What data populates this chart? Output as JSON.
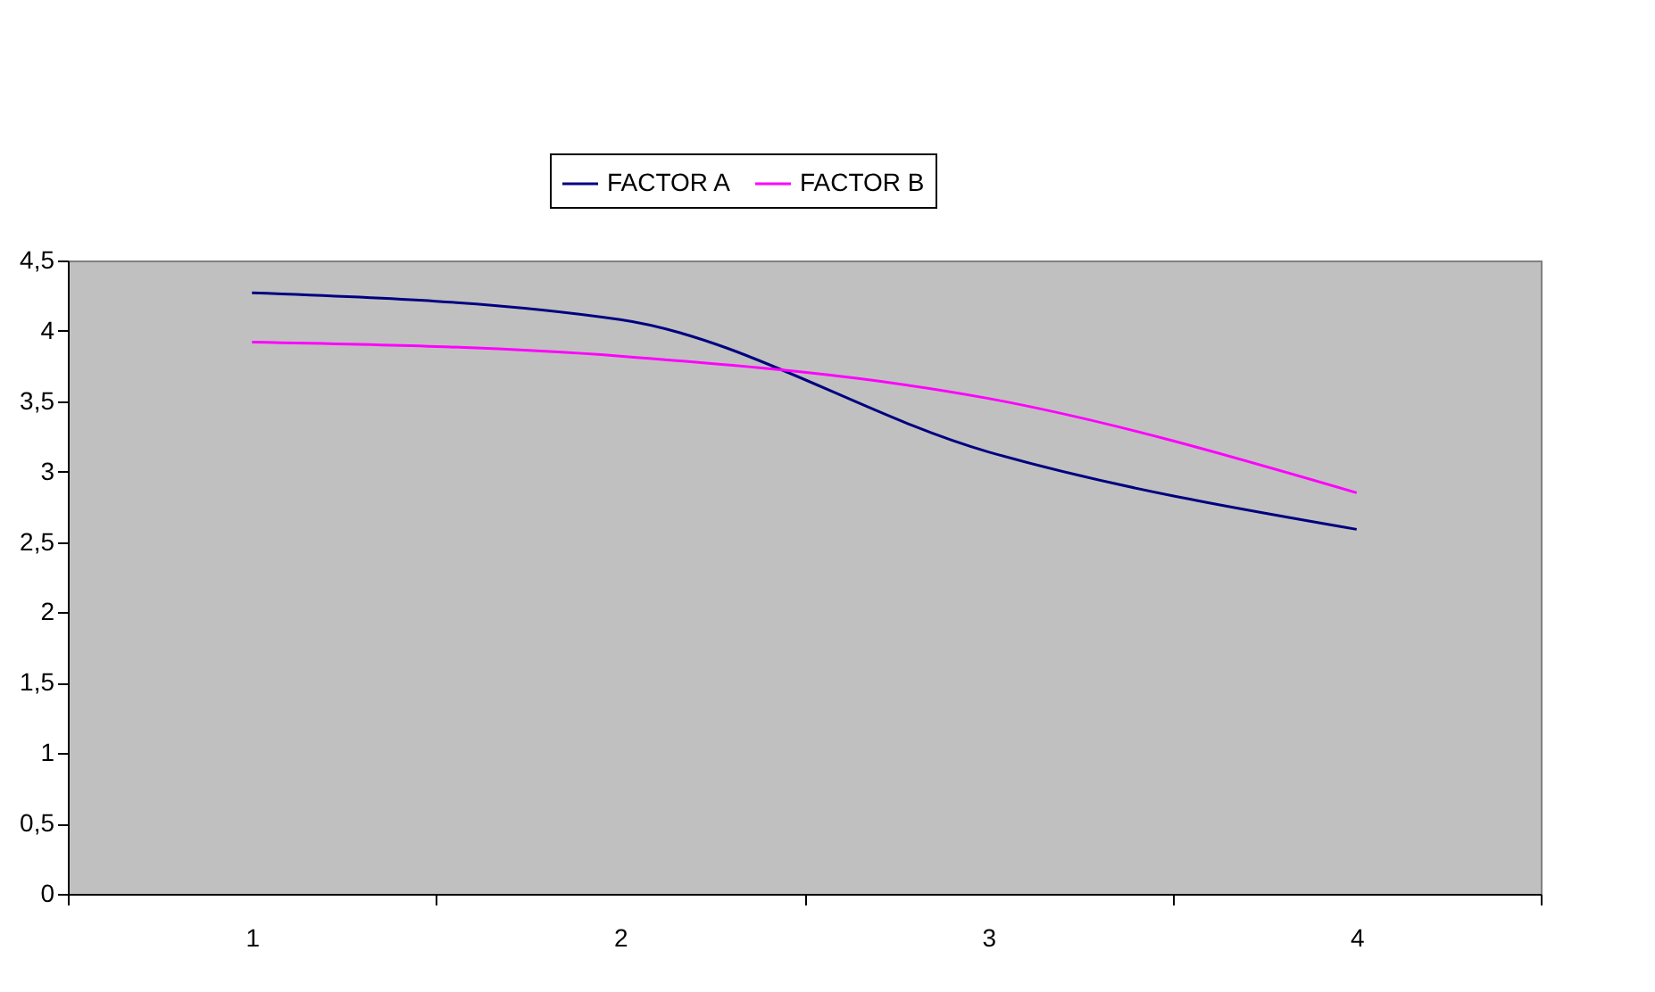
{
  "chart_data": {
    "type": "line",
    "categories": [
      "1",
      "2",
      "3",
      "4"
    ],
    "series": [
      {
        "name": "FACTOR A",
        "color": "#000080",
        "values": [
          4.27,
          4.08,
          3.14,
          2.59
        ]
      },
      {
        "name": "FACTOR B",
        "color": "#ff00ff",
        "values": [
          3.92,
          3.82,
          3.52,
          2.85
        ]
      }
    ],
    "ylim": [
      0,
      4.5
    ],
    "yticks": [
      {
        "value": 0,
        "label": "0"
      },
      {
        "value": 0.5,
        "label": "0,5"
      },
      {
        "value": 1,
        "label": "1"
      },
      {
        "value": 1.5,
        "label": "1,5"
      },
      {
        "value": 2,
        "label": "2"
      },
      {
        "value": 2.5,
        "label": "2,5"
      },
      {
        "value": 3,
        "label": "3"
      },
      {
        "value": 3.5,
        "label": "3,5"
      },
      {
        "value": 4,
        "label": "4"
      },
      {
        "value": 4.5,
        "label": "4,5"
      }
    ],
    "grid": false,
    "legend": "top",
    "marker": "none",
    "line_style": "solid"
  }
}
